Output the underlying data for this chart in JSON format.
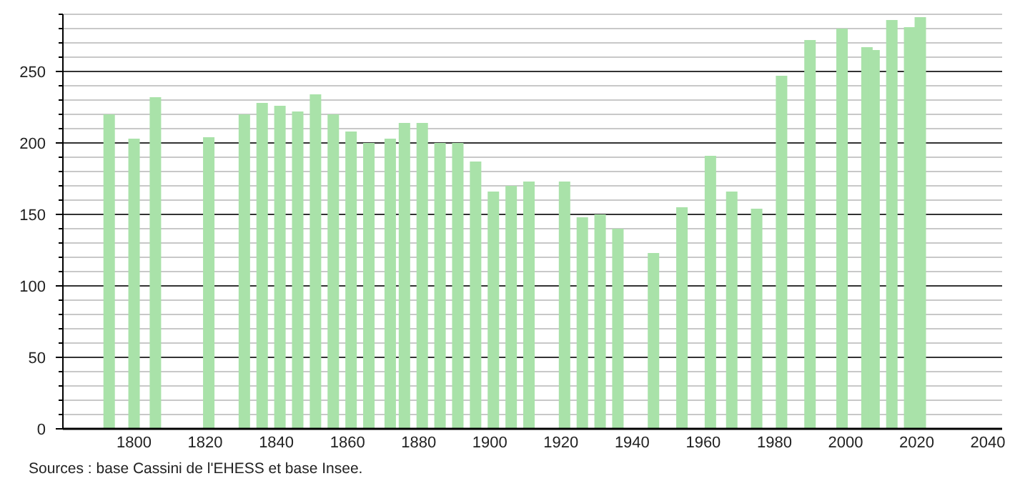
{
  "chart_data": {
    "type": "bar",
    "color": "#a9e2a9",
    "grid": true,
    "x": [
      1793,
      1800,
      1806,
      1821,
      1831,
      1836,
      1841,
      1846,
      1851,
      1856,
      1861,
      1866,
      1872,
      1876,
      1881,
      1886,
      1891,
      1896,
      1901,
      1906,
      1911,
      1921,
      1926,
      1931,
      1936,
      1946,
      1954,
      1962,
      1968,
      1975,
      1982,
      1990,
      1999,
      2006,
      2008,
      2013,
      2018,
      2021
    ],
    "values": [
      220,
      203,
      232,
      204,
      220,
      228,
      226,
      222,
      234,
      220,
      208,
      200,
      203,
      214,
      214,
      200,
      200,
      187,
      166,
      170,
      173,
      173,
      148,
      150,
      140,
      123,
      155,
      191,
      166,
      154,
      247,
      272,
      280,
      267,
      265,
      286,
      281,
      288
    ],
    "xlim": [
      1780,
      2044
    ],
    "xticks": [
      1800,
      1820,
      1840,
      1860,
      1880,
      1900,
      1920,
      1940,
      1960,
      1980,
      2000,
      2020,
      2040
    ],
    "ylim": [
      0,
      290
    ],
    "yticks": [
      0,
      {
        "value": 10,
        "label": null
      },
      {
        "value": 20,
        "label": null
      },
      {
        "value": 30,
        "label": null
      },
      {
        "value": 40,
        "label": null
      },
      50,
      {
        "value": 60,
        "label": null
      },
      {
        "value": 70,
        "label": null
      },
      {
        "value": 80,
        "label": null
      },
      {
        "value": 90,
        "label": null
      },
      100,
      {
        "value": 110,
        "label": null
      },
      {
        "value": 120,
        "label": null
      },
      {
        "value": 130,
        "label": null
      },
      {
        "value": 140,
        "label": null
      },
      150,
      {
        "value": 160,
        "label": null
      },
      {
        "value": 170,
        "label": null
      },
      {
        "value": 180,
        "label": null
      },
      {
        "value": 190,
        "label": null
      },
      200,
      {
        "value": 210,
        "label": null
      },
      {
        "value": 220,
        "label": null
      },
      {
        "value": 230,
        "label": null
      },
      {
        "value": 240,
        "label": null
      },
      250,
      {
        "value": 260,
        "label": null
      },
      {
        "value": 270,
        "label": null
      },
      {
        "value": 280,
        "label": null
      },
      {
        "value": 290,
        "label": null
      }
    ],
    "annotations": [
      "Sources : base Cassini de l'EHESS et base Insee."
    ]
  }
}
